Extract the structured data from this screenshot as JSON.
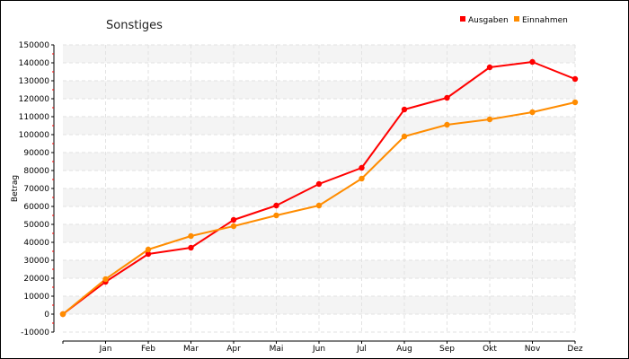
{
  "chart_data": {
    "type": "line",
    "title": "Sonstiges",
    "ylabel": "Betrag",
    "xlabel": "",
    "categories": [
      "",
      "Jan",
      "Feb",
      "Mar",
      "Apr",
      "Mai",
      "Jun",
      "Jul",
      "Aug",
      "Sep",
      "Okt",
      "Nov",
      "Dez"
    ],
    "ylim": [
      -10000,
      150000
    ],
    "yticks": [
      -10000,
      0,
      10000,
      20000,
      30000,
      40000,
      50000,
      60000,
      70000,
      80000,
      90000,
      100000,
      110000,
      120000,
      130000,
      140000,
      150000
    ],
    "grid": true,
    "legend_position": "top-right",
    "series": [
      {
        "name": "Ausgaben",
        "color": "#ff0000",
        "values": [
          0,
          18000,
          33500,
          37000,
          52500,
          60500,
          72500,
          81500,
          114000,
          120500,
          137500,
          140500,
          131000
        ]
      },
      {
        "name": "Einnahmen",
        "color": "#ff8c00",
        "values": [
          0,
          19500,
          36000,
          43500,
          49000,
          55000,
          60500,
          75500,
          99000,
          105500,
          108500,
          112500,
          118000
        ]
      }
    ]
  }
}
